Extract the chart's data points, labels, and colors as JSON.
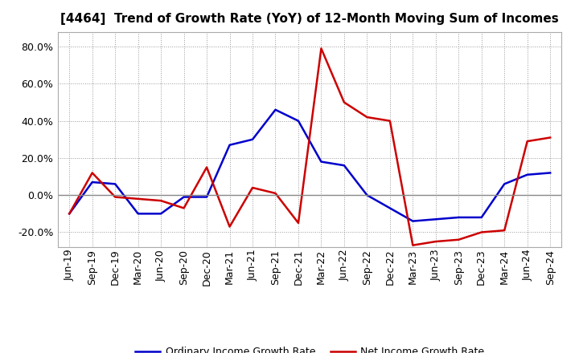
{
  "title": "[4464]  Trend of Growth Rate (YoY) of 12-Month Moving Sum of Incomes",
  "x_labels": [
    "Jun-19",
    "Sep-19",
    "Dec-19",
    "Mar-20",
    "Jun-20",
    "Sep-20",
    "Dec-20",
    "Mar-21",
    "Jun-21",
    "Sep-21",
    "Dec-21",
    "Mar-22",
    "Jun-22",
    "Sep-22",
    "Dec-22",
    "Mar-23",
    "Jun-23",
    "Sep-23",
    "Dec-23",
    "Mar-24",
    "Jun-24",
    "Sep-24"
  ],
  "ordinary_income": [
    -0.1,
    0.07,
    0.06,
    -0.1,
    -0.1,
    -0.01,
    -0.01,
    0.27,
    0.3,
    0.46,
    0.4,
    0.18,
    0.16,
    0.0,
    -0.07,
    -0.14,
    -0.13,
    -0.12,
    -0.12,
    0.06,
    0.11,
    0.12
  ],
  "net_income": [
    -0.1,
    0.12,
    -0.01,
    -0.02,
    -0.03,
    -0.07,
    0.15,
    -0.17,
    0.04,
    0.01,
    -0.15,
    0.79,
    0.5,
    0.42,
    0.4,
    -0.27,
    -0.25,
    -0.24,
    -0.2,
    -0.19,
    0.29,
    0.31
  ],
  "ordinary_color": "#0000cc",
  "net_color": "#cc0000",
  "ylim": [
    -0.28,
    0.88
  ],
  "yticks": [
    -0.2,
    0.0,
    0.2,
    0.4,
    0.6,
    0.8
  ],
  "background_color": "#ffffff",
  "grid_color": "#999999",
  "zero_line_color": "#888888",
  "legend_ordinary": "Ordinary Income Growth Rate",
  "legend_net": "Net Income Growth Rate",
  "line_width": 1.8,
  "title_fontsize": 11,
  "tick_fontsize": 9
}
